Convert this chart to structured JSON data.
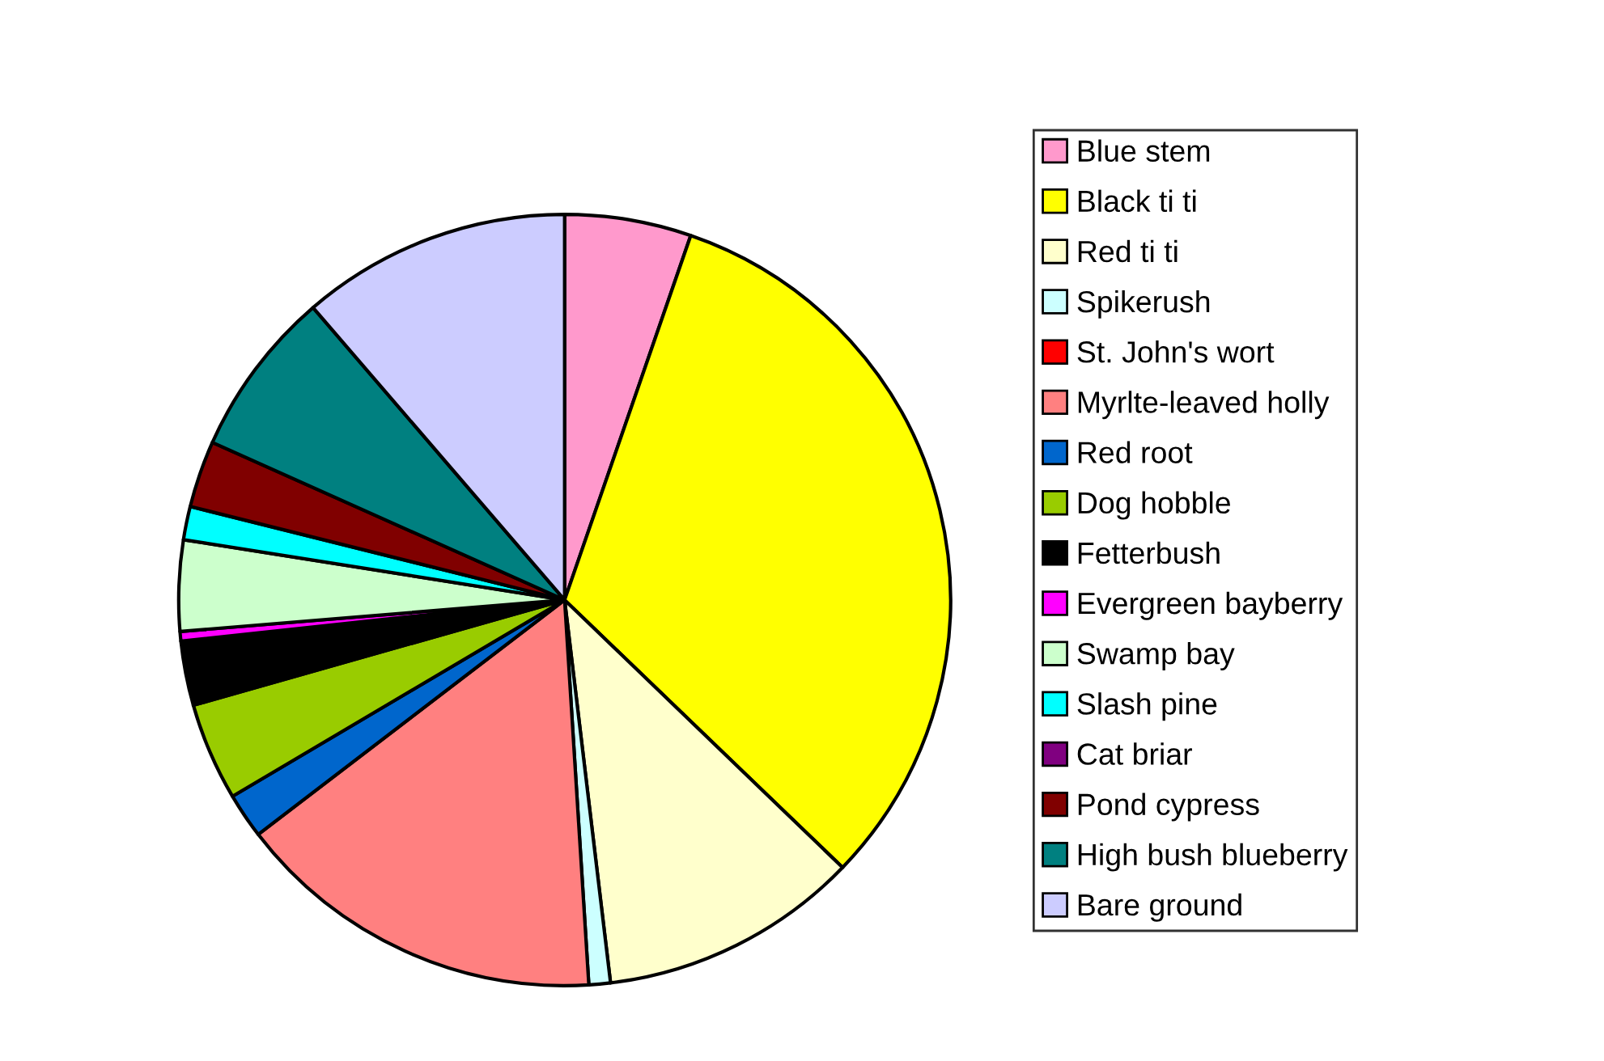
{
  "chart_data": {
    "type": "pie",
    "categories": [
      "Blue stem",
      "Black ti ti",
      "Red ti ti",
      "Spikerush",
      "St. John's wort",
      "Myrlte-leaved holly",
      "Red root",
      "Dog hobble",
      "Fetterbush",
      "Evergreen bayberry",
      "Swamp bay",
      "Slash pine",
      "Cat briar",
      "Pond cypress",
      "High bush blueberry",
      "Bare ground"
    ],
    "values": [
      5.3,
      31.9,
      10.9,
      0.9,
      0,
      15.6,
      1.9,
      4.1,
      2.7,
      0.4,
      3.8,
      1.4,
      0,
      2.8,
      7.0,
      11.3
    ],
    "colors": [
      "#ff99cc",
      "#ffff00",
      "#ffffcc",
      "#ccffff",
      "#ff0000",
      "#ff8080",
      "#0066cc",
      "#99cc00",
      "#000000",
      "#ff00ff",
      "#ccffcc",
      "#00ffff",
      "#800080",
      "#800000",
      "#008080",
      "#ccccff"
    ],
    "legend": "right"
  }
}
